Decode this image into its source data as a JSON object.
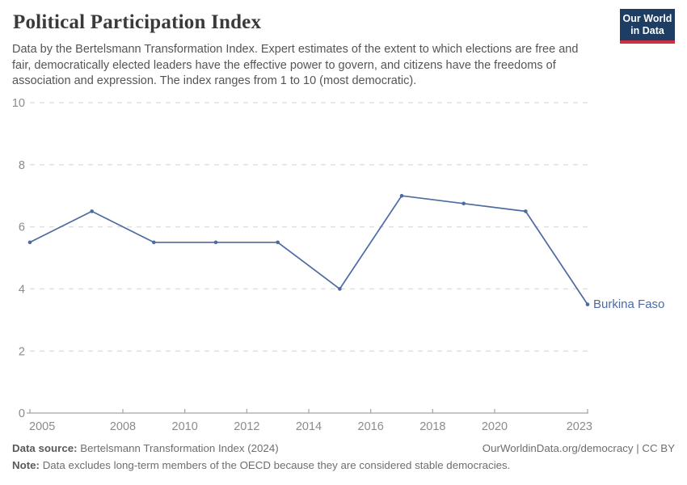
{
  "header": {
    "title": "Political Participation Index",
    "subtitle_lines": [
      "Data by the Bertelsmann Transformation Index. Expert estimates of the extent to which elections are free and",
      "fair, democratically elected leaders have the effective power to govern, and citizens have the freedoms of",
      "association and expression. The index ranges from 1 to 10 (most democratic)."
    ],
    "logo": {
      "line1": "Our World",
      "line2": "in Data"
    }
  },
  "chart_data": {
    "type": "line",
    "title": "Political Participation Index",
    "x": [
      2005,
      2007,
      2009,
      2011,
      2013,
      2015,
      2017,
      2019,
      2021,
      2023
    ],
    "series": [
      {
        "name": "Burkina Faso",
        "color": "#4d6ba3",
        "values": [
          5.5,
          6.5,
          5.5,
          5.5,
          5.5,
          4,
          7,
          6.75,
          6.5,
          3.5
        ]
      }
    ],
    "xlabel": "",
    "ylabel": "",
    "xlim": [
      2005,
      2023
    ],
    "ylim": [
      0,
      10
    ],
    "x_ticks": [
      2005,
      2008,
      2010,
      2012,
      2014,
      2016,
      2018,
      2020,
      2023
    ],
    "y_ticks": [
      0,
      2,
      4,
      6,
      8,
      10
    ],
    "grid": "horizontal-dashed",
    "legend_position": "line-end-label",
    "entity_label": "Burkina Faso"
  },
  "footer": {
    "source_label": "Data source:",
    "source_value": "Bertelsmann Transformation Index (2024)",
    "attribution": "OurWorldinData.org/democracy | CC BY",
    "note_label": "Note:",
    "note_value": "Data excludes long-term members of the OECD because they are considered stable democracies."
  },
  "colors": {
    "line": "#4d6ba3",
    "logo_bg": "#1d3d63",
    "logo_stripe": "#cf2e41",
    "grid": "#e0e0e0",
    "axis": "#a3a3a3",
    "tick_label": "#8b8b8b",
    "title": "#3a3a3a",
    "subtitle": "#555555",
    "footer_text": "#6e6e6e"
  }
}
